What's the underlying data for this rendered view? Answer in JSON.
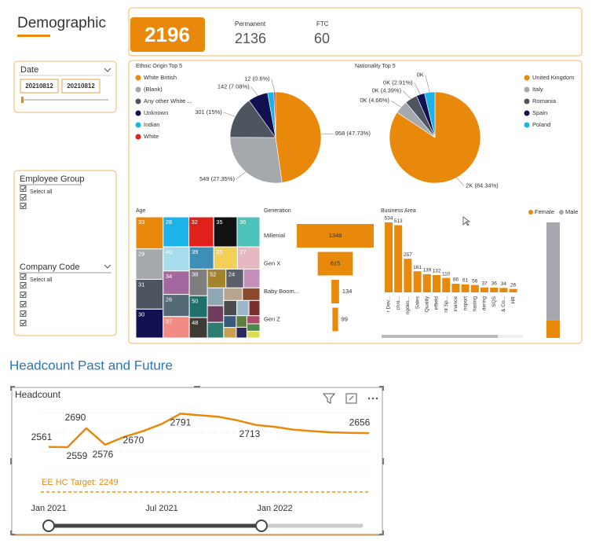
{
  "header": {
    "title": "Demographic"
  },
  "kpis": {
    "total": 2196,
    "items": [
      {
        "label": "Permanent",
        "value": 2136
      },
      {
        "label": "FTC",
        "value": 60
      }
    ]
  },
  "slicers": [
    {
      "title": "Date",
      "values": [
        "20210812",
        "20210812"
      ]
    },
    {
      "title": "Employee Group",
      "items": [
        "Select all"
      ]
    },
    {
      "title": "Company Code",
      "items": [
        "Select all"
      ]
    }
  ],
  "section_title": "Headcount Past and Future",
  "chart_data": [
    {
      "type": "pie",
      "title": "Ethnic Origin Top 5",
      "categories": [
        "White British",
        "(Blank)",
        "Any other White ...",
        "Unknown",
        "Indian",
        "White"
      ],
      "values": [
        958,
        549,
        301,
        142,
        45,
        12
      ],
      "value_labels": [
        "958 (47.73%)",
        "549 (27.35%)",
        "301 (15%)",
        "142 (7.08%)",
        null,
        "12 (0.6%)"
      ],
      "colors": [
        "#E8890C",
        "#A5A8AC",
        "#4D5560",
        "#12114F",
        "#1CB3E8",
        "#E0201B"
      ]
    },
    {
      "type": "pie",
      "title": "Nationality Top 5",
      "categories": [
        "United Kingdom",
        "Italy",
        "Romania",
        "Spain",
        "Poland"
      ],
      "values": [
        1813,
        100,
        94,
        63,
        80
      ],
      "value_labels": [
        "2K (84.34%)",
        "0K (4.66%)",
        "0K (4.39%)",
        "0K (2.91%)",
        "0K"
      ],
      "colors": [
        "#E8890C",
        "#A5A8AC",
        "#4D5560",
        "#12114F",
        "#1CB3E8"
      ]
    },
    {
      "type": "treemap",
      "title": "Age",
      "categories": [
        "33",
        "29",
        "31",
        "30",
        "28",
        "32",
        "35",
        "36",
        "40",
        "34",
        "26",
        "37",
        "39",
        "25",
        "27",
        "38",
        "50",
        "48",
        "52",
        "24",
        null,
        null,
        null,
        null,
        null,
        null,
        null,
        null,
        null,
        null,
        null,
        null,
        null,
        null,
        null,
        null
      ],
      "values": [
        100,
        95,
        93,
        90,
        88,
        85,
        80,
        78,
        72,
        70,
        66,
        64,
        62,
        60,
        57,
        55,
        45,
        42,
        40,
        38,
        35,
        33,
        31,
        29,
        27,
        25,
        23,
        21,
        19,
        17,
        15,
        14,
        13,
        12,
        11,
        10
      ],
      "colors": [
        "#E8890C",
        "#A5A8AC",
        "#4D5560",
        "#12114F",
        "#1CB3E8",
        "#E0201B",
        "#111111",
        "#4CC2B8",
        "#A6DCEC",
        "#A3689E",
        "#556A77",
        "#F08C84",
        "#3D8FB8",
        "#F2CF55",
        "#E6B8BF",
        "#7E7E7E",
        "#1F6F6A",
        "#3E3A36",
        "#A3842C",
        "#5B5F6B",
        "#C48FB8",
        "#8FA7B3",
        "#6E3D5E",
        "#2E7D74",
        "#B9A48E",
        "#8B4A2E",
        "#4A4A4A",
        "#9AB8C8",
        "#7A2E2E",
        "#3A5A7A",
        "#C8A050",
        "#5E7E3E",
        "#2A2A5A",
        "#B04A6A",
        "#4A8A4A",
        "#DDDD55"
      ]
    },
    {
      "type": "funnel",
      "title": "Generation",
      "categories": [
        "Millenial",
        "Gen X",
        "Baby Boom...",
        "Gen Z"
      ],
      "values": [
        1348,
        615,
        134,
        99
      ],
      "color": "#E8890C"
    },
    {
      "type": "bar",
      "title": "Business Area",
      "categories": [
        "r Dev...",
        "chni...",
        "ngdes...",
        "Sales",
        "Quality",
        "effield",
        "nt Sp...",
        "inance",
        "nsport",
        "hasing",
        "dering",
        "SQS",
        "& Co...",
        "HR"
      ],
      "values": [
        534,
        513,
        257,
        161,
        139,
        132,
        110,
        66,
        61,
        56,
        37,
        36,
        34,
        26
      ],
      "color": "#E8890C"
    },
    {
      "type": "stacked_bar",
      "categories": [
        null
      ],
      "series": [
        {
          "name": "Female",
          "color": "#E8890C",
          "values": [
            330
          ]
        },
        {
          "name": "Male",
          "color": "#A5A8AC",
          "values": [
            1866
          ]
        }
      ]
    },
    {
      "type": "line",
      "title": "Headcount",
      "x": [
        "2021-01",
        "2021-02",
        "2021-03",
        "2021-04",
        "2021-05",
        "2021-06",
        "2021-07",
        "2021-08",
        "2021-09",
        "2021-10",
        "2021-11",
        "2021-12",
        "2022-01",
        "2022-02",
        "2022-03",
        "2022-04",
        "2022-05",
        "2022-06"
      ],
      "values": [
        2561,
        2559,
        2690,
        2576,
        2630,
        2670,
        2720,
        2791,
        2780,
        2770,
        2745,
        2713,
        2700,
        2680,
        2670,
        2662,
        2658,
        2656
      ],
      "value_labels": [
        "2561",
        "2559",
        "2690",
        "2576",
        null,
        "2670",
        null,
        "2791",
        null,
        null,
        null,
        "2713",
        null,
        null,
        null,
        null,
        null,
        "2656"
      ],
      "color": "#E8890C",
      "ylim": [
        2200,
        2880
      ],
      "xticks": [
        {
          "value": "2021-01",
          "label": "Jan 2021"
        },
        {
          "value": "2021-07",
          "label": "Jul 2021"
        },
        {
          "value": "2022-01",
          "label": "Jan 2022"
        }
      ],
      "target": {
        "value": 2249,
        "label": "EE HC Target: 2249"
      }
    }
  ]
}
